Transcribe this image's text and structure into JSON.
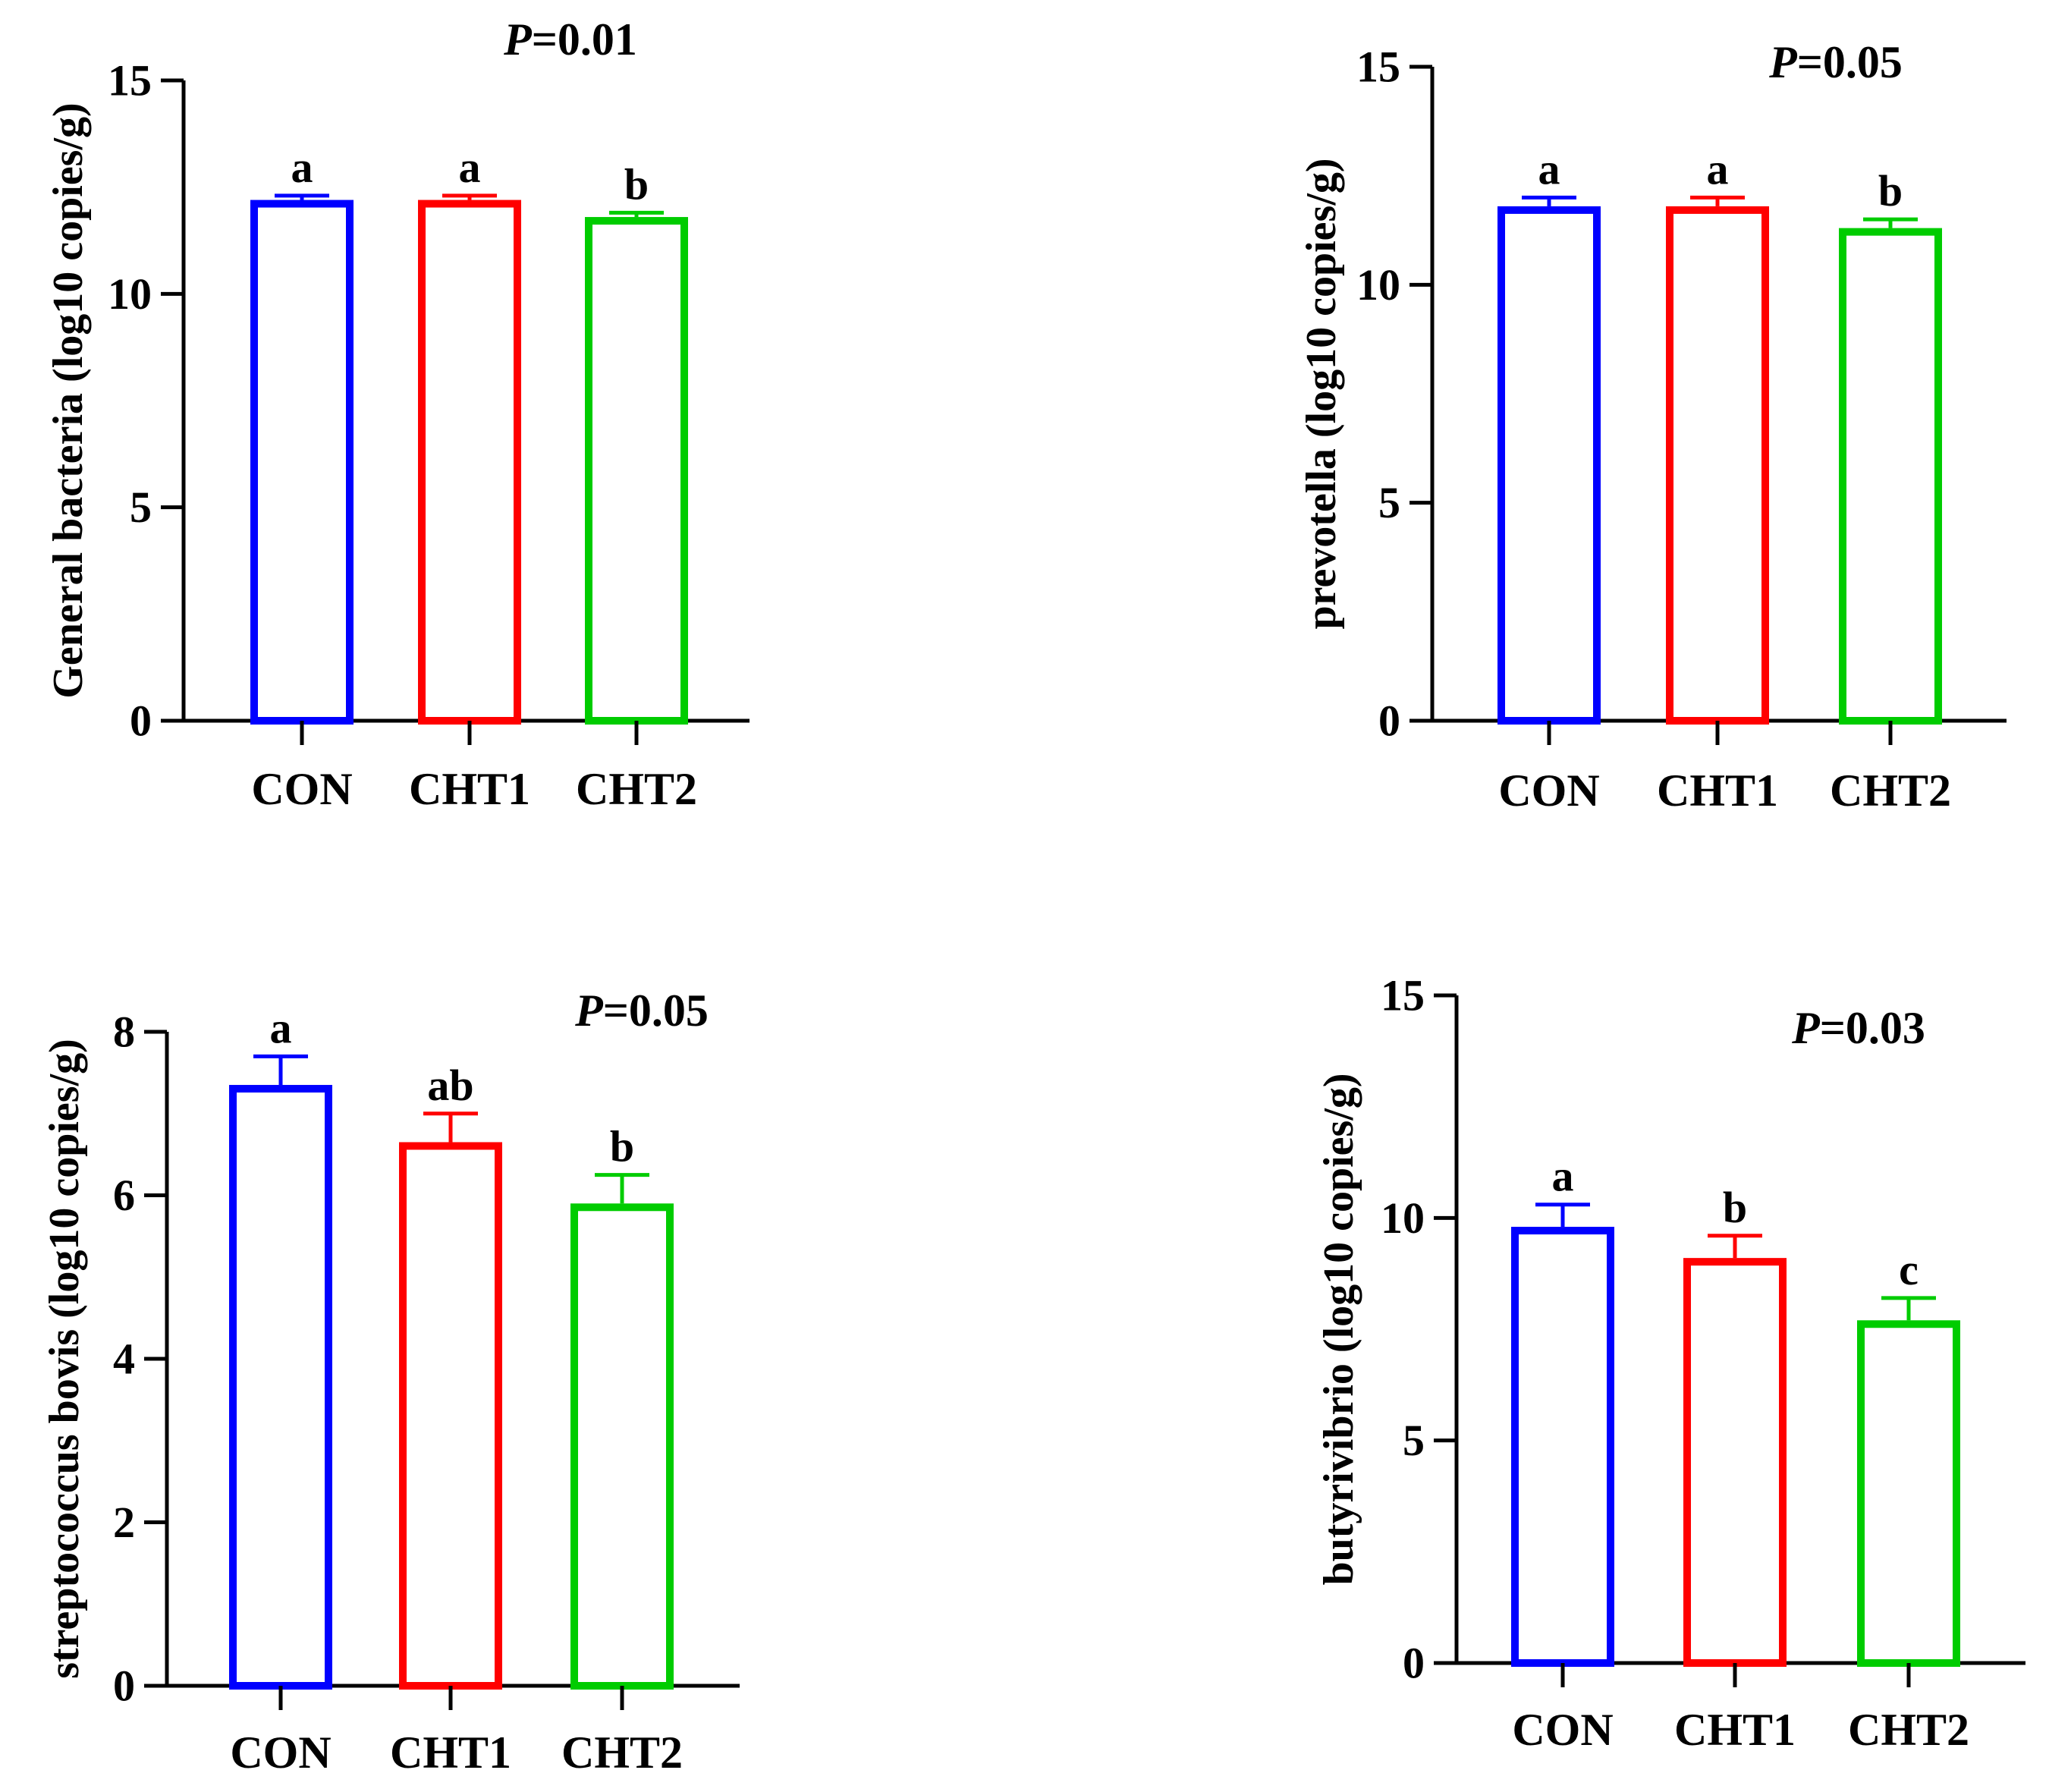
{
  "chart_data": [
    {
      "type": "bar",
      "title": "",
      "p_label": "P",
      "p_value": "=0.01",
      "xlabel": "",
      "ylabel": "General bacteria (log10 copies/g)",
      "categories": [
        "CON",
        "CHT1",
        "CHT2"
      ],
      "values": [
        12.2,
        12.2,
        11.8
      ],
      "errors": [
        0.1,
        0.1,
        0.1
      ],
      "letters": [
        "a",
        "a",
        "b"
      ],
      "colors": [
        "#0000ff",
        "#ff0000",
        "#00cc00"
      ],
      "ylim": [
        0,
        15
      ],
      "yticks": [
        0,
        5,
        10,
        15
      ],
      "ytick_labels": [
        "0",
        "5",
        "10",
        "15"
      ],
      "grid": false
    },
    {
      "type": "bar",
      "title": "",
      "p_label": "P",
      "p_value": "=0.05",
      "xlabel": "",
      "ylabel": "prevotella (log10 copies/g)",
      "categories": [
        "CON",
        "CHT1",
        "CHT2"
      ],
      "values": [
        11.8,
        11.8,
        11.3
      ],
      "errors": [
        0.2,
        0.2,
        0.2
      ],
      "letters": [
        "a",
        "a",
        "b"
      ],
      "colors": [
        "#0000ff",
        "#ff0000",
        "#00cc00"
      ],
      "ylim": [
        0,
        15
      ],
      "yticks": [
        0,
        5,
        10,
        15
      ],
      "ytick_labels": [
        "0",
        "5",
        "10",
        "15"
      ],
      "grid": false
    },
    {
      "type": "bar",
      "title": "",
      "p_label": "P",
      "p_value": "=0.05",
      "xlabel": "",
      "ylabel": "streptococcus bovis (log10 copies/g)",
      "categories": [
        "CON",
        "CHT1",
        "CHT2"
      ],
      "values": [
        7.35,
        6.65,
        5.9
      ],
      "errors": [
        0.35,
        0.35,
        0.35
      ],
      "letters": [
        "a",
        "ab",
        "b"
      ],
      "colors": [
        "#0000ff",
        "#ff0000",
        "#00cc00"
      ],
      "ylim": [
        0,
        8
      ],
      "yticks": [
        0,
        2,
        4,
        6,
        8
      ],
      "ytick_labels": [
        "0",
        "2",
        "4",
        "6",
        "8"
      ],
      "grid": false
    },
    {
      "type": "bar",
      "title": "",
      "p_label": "P",
      "p_value": "=0.03",
      "xlabel": "",
      "ylabel": "butyrivibrio (log10 copies/g)",
      "categories": [
        "CON",
        "CHT1",
        "CHT2"
      ],
      "values": [
        9.8,
        9.1,
        7.7
      ],
      "errors": [
        0.5,
        0.5,
        0.5
      ],
      "letters": [
        "a",
        "b",
        "c"
      ],
      "colors": [
        "#0000ff",
        "#ff0000",
        "#00cc00"
      ],
      "ylim": [
        0,
        15
      ],
      "yticks": [
        0,
        5,
        10,
        15
      ],
      "ytick_labels": [
        "0",
        "5",
        "10",
        "15"
      ],
      "grid": false
    }
  ]
}
